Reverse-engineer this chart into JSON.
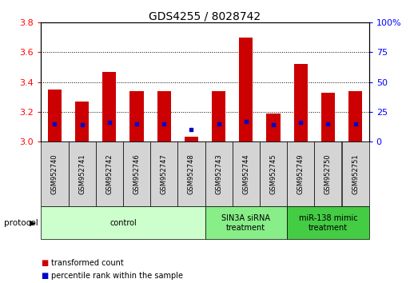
{
  "title": "GDS4255 / 8028742",
  "samples": [
    "GSM952740",
    "GSM952741",
    "GSM952742",
    "GSM952746",
    "GSM952747",
    "GSM952748",
    "GSM952743",
    "GSM952744",
    "GSM952745",
    "GSM952749",
    "GSM952750",
    "GSM952751"
  ],
  "transformed_count": [
    3.35,
    3.27,
    3.47,
    3.34,
    3.34,
    3.03,
    3.34,
    3.7,
    3.19,
    3.52,
    3.33,
    3.34
  ],
  "percentile_rank": [
    15,
    14,
    16,
    15,
    15,
    10,
    15,
    17,
    14,
    16,
    15,
    15
  ],
  "bar_bottom": 3.0,
  "ylim_left": [
    3.0,
    3.8
  ],
  "ylim_right": [
    0,
    100
  ],
  "yticks_left": [
    3.0,
    3.2,
    3.4,
    3.6,
    3.8
  ],
  "yticks_right": [
    0,
    25,
    50,
    75,
    100
  ],
  "yticklabels_right": [
    "0",
    "25",
    "50",
    "75",
    "100%"
  ],
  "bar_color": "#cc0000",
  "percentile_color": "#0000cc",
  "groups": [
    {
      "label": "control",
      "start": 0,
      "end": 5,
      "color": "#ccffcc",
      "dark_color": "#88ee88"
    },
    {
      "label": "SIN3A siRNA\ntreatment",
      "start": 6,
      "end": 8,
      "color": "#88ee88",
      "dark_color": "#44cc44"
    },
    {
      "label": "miR-138 mimic\ntreatment",
      "start": 9,
      "end": 11,
      "color": "#44cc44",
      "dark_color": "#22aa22"
    }
  ],
  "legend_items": [
    {
      "label": "transformed count",
      "color": "#cc0000"
    },
    {
      "label": "percentile rank within the sample",
      "color": "#0000cc"
    }
  ],
  "protocol_label": "protocol",
  "title_fontsize": 10,
  "tick_fontsize": 8,
  "bar_width": 0.5
}
